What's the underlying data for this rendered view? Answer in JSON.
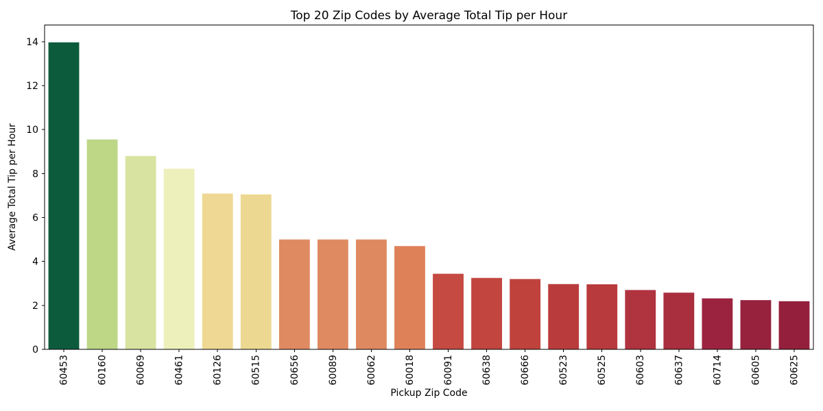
{
  "chart_data": {
    "type": "bar",
    "title": "Top 20 Zip Codes by Average Total Tip per Hour",
    "xlabel": "Pickup Zip Code",
    "ylabel": "Average Total Tip per Hour",
    "categories": [
      "60453",
      "60160",
      "60069",
      "60461",
      "60126",
      "60515",
      "60656",
      "60089",
      "60062",
      "60018",
      "60091",
      "60638",
      "60666",
      "60523",
      "60525",
      "60603",
      "60637",
      "60714",
      "60605",
      "60625"
    ],
    "values": [
      13.97,
      9.55,
      8.8,
      8.22,
      7.09,
      7.05,
      5.0,
      5.0,
      5.0,
      4.7,
      3.44,
      3.25,
      3.2,
      2.97,
      2.96,
      2.7,
      2.58,
      2.32,
      2.24,
      2.19
    ],
    "bar_colors": [
      "#0d5b3d",
      "#bdd787",
      "#d9e3a1",
      "#edf0bb",
      "#eed893",
      "#ecd891",
      "#e08a62",
      "#e08a62",
      "#df8961",
      "#de8159",
      "#c54a41",
      "#c2463f",
      "#c0423d",
      "#ba3b3b",
      "#b93a3c",
      "#b03340",
      "#a92e3e",
      "#9c2340",
      "#97223e",
      "#941f3c"
    ],
    "ylim": [
      0,
      14.76
    ],
    "yticks": [
      0,
      2,
      4,
      6,
      8,
      10,
      12,
      14
    ],
    "x_tick_rotation": 90,
    "grid": false,
    "legend_position": "none",
    "axis_color": "#000000",
    "background_color": "#ffffff"
  }
}
